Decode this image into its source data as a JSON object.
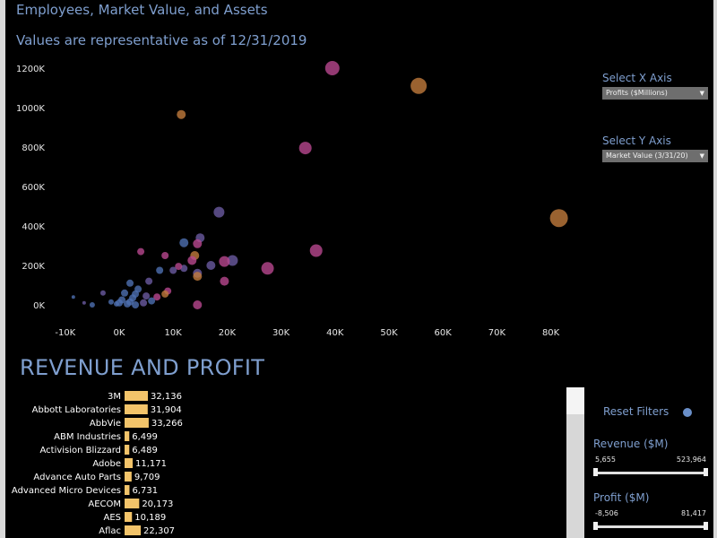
{
  "header": {
    "title": "Employees, Market Value, and Assets",
    "subtitle": "Values are representative as of 12/31/2019"
  },
  "controls": {
    "x_axis": {
      "label": "Select X Axis",
      "value": "Profits ($Millions)"
    },
    "y_axis": {
      "label": "Select Y Axis",
      "value": "Market Value (3/31/20)"
    }
  },
  "section_title": "REVENUE AND PROFIT",
  "sidebar": {
    "reset_label": "Reset Filters",
    "reset_color": "#6a8fc9",
    "filters": [
      {
        "label": "Revenue ($M)",
        "min": "5,655",
        "max": "523,964"
      },
      {
        "label": "Profit ($M)",
        "min": "-8,506",
        "max": "81,417"
      }
    ]
  },
  "chart_data": [
    {
      "type": "scatter",
      "title": "Employees, Market Value, and Assets",
      "xlabel": "",
      "ylabel": "",
      "x_ticks": [
        "-10K",
        "0K",
        "10K",
        "20K",
        "30K",
        "40K",
        "50K",
        "60K",
        "70K",
        "80K"
      ],
      "y_ticks": [
        "0K",
        "200K",
        "400K",
        "600K",
        "800K",
        "1000K",
        "1200K"
      ],
      "xlim": [
        -10000,
        85000
      ],
      "ylim": [
        0,
        1250000
      ],
      "grid": false,
      "points": [
        {
          "x": 39500,
          "y": 1200000,
          "size": 8,
          "color": "#b8478e"
        },
        {
          "x": 55500,
          "y": 1110000,
          "size": 9,
          "color": "#c07a3c"
        },
        {
          "x": 11500,
          "y": 965000,
          "size": 5,
          "color": "#c07a3c"
        },
        {
          "x": 34500,
          "y": 795000,
          "size": 7,
          "color": "#b8478e"
        },
        {
          "x": 81500,
          "y": 440000,
          "size": 10,
          "color": "#c07a3c"
        },
        {
          "x": 18500,
          "y": 470000,
          "size": 6,
          "color": "#6a5aa0"
        },
        {
          "x": 36500,
          "y": 275000,
          "size": 7,
          "color": "#b8478e"
        },
        {
          "x": 27500,
          "y": 185000,
          "size": 7,
          "color": "#b8478e"
        },
        {
          "x": 21000,
          "y": 225000,
          "size": 6,
          "color": "#6a5aa0"
        },
        {
          "x": 19500,
          "y": 220000,
          "size": 6,
          "color": "#b8478e"
        },
        {
          "x": 19500,
          "y": 120000,
          "size": 5,
          "color": "#b8478e"
        },
        {
          "x": 14500,
          "y": 0,
          "size": 5,
          "color": "#b8478e"
        },
        {
          "x": 15000,
          "y": 340000,
          "size": 5,
          "color": "#6a5aa0"
        },
        {
          "x": 14500,
          "y": 310000,
          "size": 5,
          "color": "#b8478e"
        },
        {
          "x": 12000,
          "y": 315000,
          "size": 5,
          "color": "#4e6fb0"
        },
        {
          "x": 14000,
          "y": 250000,
          "size": 5,
          "color": "#c07a3c"
        },
        {
          "x": 13500,
          "y": 225000,
          "size": 5,
          "color": "#b8478e"
        },
        {
          "x": 17000,
          "y": 200000,
          "size": 5,
          "color": "#6a5aa0"
        },
        {
          "x": 14500,
          "y": 160000,
          "size": 5,
          "color": "#6a5aa0"
        },
        {
          "x": 14500,
          "y": 145000,
          "size": 5,
          "color": "#c07a3c"
        },
        {
          "x": 12000,
          "y": 185000,
          "size": 4,
          "color": "#6a5aa0"
        },
        {
          "x": 11000,
          "y": 195000,
          "size": 4,
          "color": "#b8478e"
        },
        {
          "x": 10000,
          "y": 175000,
          "size": 4,
          "color": "#6a5aa0"
        },
        {
          "x": 8500,
          "y": 250000,
          "size": 4,
          "color": "#b8478e"
        },
        {
          "x": 4000,
          "y": 270000,
          "size": 4,
          "color": "#b8478e"
        },
        {
          "x": 7500,
          "y": 175000,
          "size": 4,
          "color": "#4e6fb0"
        },
        {
          "x": 5500,
          "y": 120000,
          "size": 4,
          "color": "#6a5aa0"
        },
        {
          "x": 9000,
          "y": 70000,
          "size": 4,
          "color": "#b8478e"
        },
        {
          "x": 8500,
          "y": 55000,
          "size": 4,
          "color": "#c07a3c"
        },
        {
          "x": 7000,
          "y": 40000,
          "size": 4,
          "color": "#b8478e"
        },
        {
          "x": 4500,
          "y": 10000,
          "size": 4,
          "color": "#6a5aa0"
        },
        {
          "x": 3500,
          "y": 80000,
          "size": 4,
          "color": "#4e6fb0"
        },
        {
          "x": 3000,
          "y": 55000,
          "size": 4,
          "color": "#4e6fb0"
        },
        {
          "x": 2500,
          "y": 35000,
          "size": 4,
          "color": "#4e6fb0"
        },
        {
          "x": 2000,
          "y": 15000,
          "size": 4,
          "color": "#4e6fb0"
        },
        {
          "x": 1500,
          "y": 5000,
          "size": 4,
          "color": "#4e6fb0"
        },
        {
          "x": 1000,
          "y": 60000,
          "size": 4,
          "color": "#4e6fb0"
        },
        {
          "x": 500,
          "y": 25000,
          "size": 4,
          "color": "#4e6fb0"
        },
        {
          "x": 0,
          "y": 10000,
          "size": 4,
          "color": "#4e6fb0"
        },
        {
          "x": -500,
          "y": 5000,
          "size": 3,
          "color": "#4e6fb0"
        },
        {
          "x": -1500,
          "y": 15000,
          "size": 3,
          "color": "#4e6fb0"
        },
        {
          "x": -3000,
          "y": 60000,
          "size": 3,
          "color": "#6a5aa0"
        },
        {
          "x": -5000,
          "y": 0,
          "size": 3,
          "color": "#4e6fb0"
        },
        {
          "x": -6500,
          "y": 10000,
          "size": 2,
          "color": "#6a5aa0"
        },
        {
          "x": -8500,
          "y": 40000,
          "size": 2,
          "color": "#4e6fb0"
        },
        {
          "x": 2000,
          "y": 110000,
          "size": 4,
          "color": "#4e6fb0"
        },
        {
          "x": 5000,
          "y": 45000,
          "size": 4,
          "color": "#6a5aa0"
        },
        {
          "x": 6000,
          "y": 20000,
          "size": 4,
          "color": "#4e6fb0"
        },
        {
          "x": 3000,
          "y": 0,
          "size": 4,
          "color": "#4e6fb0"
        }
      ]
    },
    {
      "type": "bar",
      "title": "REVENUE AND PROFIT",
      "categories": [
        "3M",
        "Abbott Laboratories",
        "AbbVie",
        "ABM Industries",
        "Activision Blizzard",
        "Adobe",
        "Advance Auto Parts",
        "Advanced Micro Devices",
        "AECOM",
        "AES",
        "Aflac"
      ],
      "values": [
        32136,
        31904,
        33266,
        6499,
        6489,
        11171,
        9709,
        6731,
        20173,
        10189,
        22307
      ],
      "value_labels": [
        "32,136",
        "31,904",
        "33,266",
        "6,499",
        "6,489",
        "11,171",
        "9,709",
        "6,731",
        "20,173",
        "10,189",
        "22,307"
      ],
      "bar_color": "#f3c46a"
    }
  ]
}
